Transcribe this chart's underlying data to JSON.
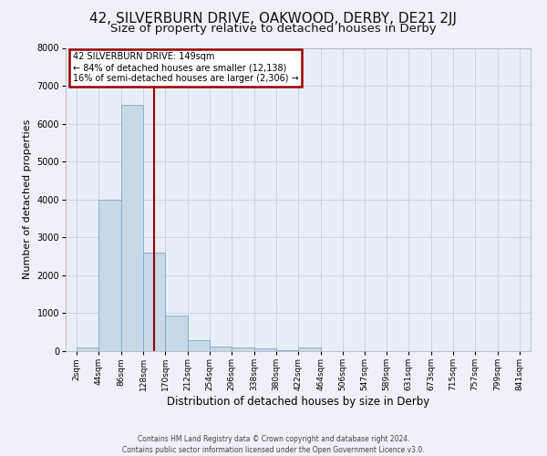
{
  "title": "42, SILVERBURN DRIVE, OAKWOOD, DERBY, DE21 2JJ",
  "subtitle": "Size of property relative to detached houses in Derby",
  "xlabel": "Distribution of detached houses by size in Derby",
  "ylabel": "Number of detached properties",
  "footnote": "Contains HM Land Registry data © Crown copyright and database right 2024.\nContains public sector information licensed under the Open Government Licence v3.0.",
  "property_size": 149,
  "property_label": "42 SILVERBURN DRIVE: 149sqm",
  "annotation_line1": "← 84% of detached houses are smaller (12,138)",
  "annotation_line2": "16% of semi-detached houses are larger (2,306) →",
  "bar_edges": [
    2,
    44,
    86,
    128,
    170,
    212,
    254,
    296,
    338,
    380,
    422,
    464,
    506,
    547,
    589,
    631,
    673,
    715,
    757,
    799,
    841
  ],
  "bar_heights": [
    100,
    4000,
    6500,
    2600,
    950,
    300,
    130,
    100,
    80,
    30,
    100,
    0,
    0,
    0,
    0,
    0,
    0,
    0,
    0,
    0
  ],
  "bar_color": "#c8d8e8",
  "bar_edge_color": "#7aaac8",
  "grid_color": "#c8d4e4",
  "bg_color": "#e8eef8",
  "fig_bg_color": "#f0f0f8",
  "vline_color": "#990000",
  "annotation_box_color": "#990000",
  "ylim": [
    0,
    8000
  ],
  "title_fontsize": 11,
  "subtitle_fontsize": 9.5,
  "xlabel_fontsize": 8.5,
  "ylabel_fontsize": 8,
  "tick_fontsize": 6.5,
  "footnote_fontsize": 5.5,
  "tick_labels": [
    "2sqm",
    "44sqm",
    "86sqm",
    "128sqm",
    "170sqm",
    "212sqm",
    "254sqm",
    "296sqm",
    "338sqm",
    "380sqm",
    "422sqm",
    "464sqm",
    "506sqm",
    "547sqm",
    "589sqm",
    "631sqm",
    "673sqm",
    "715sqm",
    "757sqm",
    "799sqm",
    "841sqm"
  ]
}
